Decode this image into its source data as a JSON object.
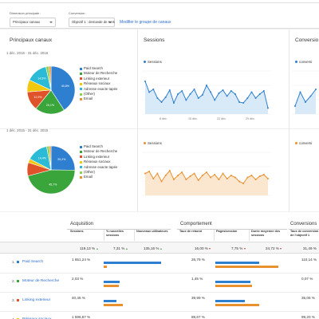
{
  "toolbar": {
    "primary_dimension_label": "Dimension principale :",
    "primary_dimension_value": "Principaux canaux",
    "conversion_label": "Conversion :",
    "conversion_value": "Objectif 1 : demande de rens",
    "modify_link": "Modifier le groupe de canaux"
  },
  "panels": {
    "channels_title": "Principaux canaux",
    "sessions_title": "Sessions",
    "conversions_title": "Conversio",
    "range_current": "1 déc. 2016 - 31 déc. 2016",
    "range_previous": "1 déc. 2015 - 31 déc. 2015",
    "sessions_series": "Sessions",
    "conversions_series": "conversi",
    "sessions_x_labels": [
      "8 déc.",
      "15 déc.",
      "22 déc.",
      "29 déc."
    ],
    "legend": [
      {
        "label": "Paid Search",
        "color": "#2f7fd0"
      },
      {
        "label": "Moteur de Recherche",
        "color": "#3aa53a"
      },
      {
        "label": "Linking exterieur",
        "color": "#e0532a"
      },
      {
        "label": "Réseaux sociaux",
        "color": "#f2c80f"
      },
      {
        "label": "Adresse exacte tapée",
        "color": "#2bbbd6"
      },
      {
        "label": "(Other)",
        "color": "#8fd14f"
      },
      {
        "label": "Email",
        "color": "#e9902f"
      }
    ],
    "pie_current": {
      "values": [
        40.8,
        20.1,
        12.9,
        8.2,
        14.5,
        2.0,
        1.5
      ],
      "labels": [
        "40,8%",
        "20,1%",
        "12,9%",
        "",
        "14,5%",
        "",
        ""
      ]
    },
    "pie_previous": {
      "values": [
        25.2,
        45.7,
        9.1,
        2.6,
        14.4,
        1.8,
        1.2
      ],
      "labels": [
        "25,2%",
        "45,7%",
        "",
        "",
        "14,4%",
        "",
        ""
      ]
    },
    "sessions_current": [
      0.82,
      0.55,
      0.62,
      0.4,
      0.3,
      0.42,
      0.6,
      0.28,
      0.5,
      0.58,
      0.35,
      0.5,
      0.62,
      0.4,
      0.48,
      0.72,
      0.55,
      0.35,
      0.52,
      0.6,
      0.45,
      0.58,
      0.5,
      0.3,
      0.28,
      0.4,
      0.55,
      0.4,
      0.5,
      0.58,
      0.15
    ],
    "sessions_previous": [
      0.55,
      0.6,
      0.42,
      0.55,
      0.35,
      0.5,
      0.62,
      0.4,
      0.5,
      0.58,
      0.4,
      0.48,
      0.55,
      0.38,
      0.5,
      0.58,
      0.45,
      0.52,
      0.4,
      0.55,
      0.42,
      0.5,
      0.45,
      0.35,
      0.3,
      0.45,
      0.5,
      0.4,
      0.48,
      0.52,
      0.42
    ],
    "conversions_current": [
      0.2,
      0.55,
      0.3,
      0.45,
      0.62
    ]
  },
  "table": {
    "groups": {
      "acquisition": "Acquisition",
      "behaviour": "Comportement",
      "conversions": "Conversions"
    },
    "columns": {
      "sessions": "Sessions",
      "new_sessions": "% nouvelles sessions",
      "new_users": "Nouveaux utilisateurs",
      "bounce": "Taux de rebond",
      "pages": "Pages/session",
      "duration": "Durée moyenne des sessions",
      "conv_rate": "Taux de conversion de l'objectif 1"
    },
    "totals": {
      "sessions": "119,13 %",
      "new_sessions": "7,31 %",
      "new_users": "135,16 %",
      "bounce": "16,00 %",
      "pages": "7,75 %",
      "duration": "24,72 %",
      "conv_rate": "31,49 %"
    },
    "rows": [
      {
        "index": "1.",
        "name": "Paid Search",
        "color": "#2f7fd0",
        "sessions": "1 651,24 %",
        "bounce": "26,79 %",
        "conv_rate": "110,14 %",
        "bars": {
          "acq_blue": 0.9,
          "acq_orange": 0.05,
          "beh_blue": 0.62,
          "beh_orange": 0.9
        }
      },
      {
        "index": "2.",
        "name": "Moteur de Recherche",
        "color": "#3aa53a",
        "sessions": "2,03 %",
        "bounce": "1,45 %",
        "conv_rate": "0,07 %",
        "bars": {
          "acq_blue": 0.25,
          "acq_orange": 0.24,
          "beh_blue": 0.5,
          "beh_orange": 0.52
        }
      },
      {
        "index": "3.",
        "name": "Linking exterieur",
        "color": "#e0532a",
        "sessions": "40,45 %",
        "bounce": "39,99 %",
        "conv_rate": "35,06 %",
        "bars": {
          "acq_blue": 0.2,
          "acq_orange": 0.3,
          "beh_blue": 0.42,
          "beh_orange": 0.62
        }
      },
      {
        "index": "4.",
        "name": "Réseaux sociaux",
        "color": "#f2c80f",
        "sessions": "1 596,67 %",
        "bounce": "88,67 %",
        "conv_rate": "99,20 %",
        "bars": {
          "acq_blue": 0.55,
          "acq_orange": 0.04,
          "beh_blue": 0.3,
          "beh_orange": 0.1
        }
      }
    ]
  }
}
